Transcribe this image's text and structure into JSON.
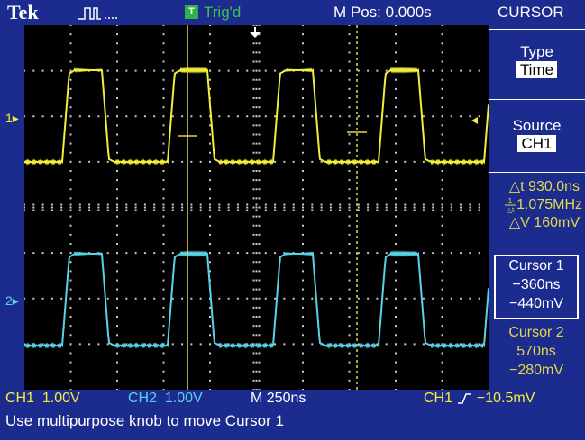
{
  "header": {
    "logo": "Tek",
    "trigger_status_icon": "T",
    "trigger_status": "Trig'd",
    "horizontal_position": "M Pos: 0.000s"
  },
  "menu": {
    "title": "CURSOR",
    "type_label": "Type",
    "type_value": "Time",
    "source_label": "Source",
    "source_value": "CH1"
  },
  "measurements": {
    "delta_t": "△t 930.0ns",
    "inv_delta_t": "1.075MHz",
    "delta_v": "△V 160mV"
  },
  "cursor1": {
    "label": "Cursor 1",
    "time": "−360ns",
    "voltage": "−440mV"
  },
  "cursor2": {
    "label": "Cursor 2",
    "time": "570ns",
    "voltage": "−280mV"
  },
  "channels": {
    "ch1_marker": "1",
    "ch2_marker": "2",
    "ch1_scale_name": "CH1",
    "ch1_scale": "1.00V",
    "ch2_scale_name": "CH2",
    "ch2_scale": "1.00V",
    "timebase": "M 250ns",
    "trigger_source": "CH1",
    "trigger_level": "−10.5mV"
  },
  "colors": {
    "background": "#1c2b8e",
    "ch1": "#f2ee3c",
    "ch2": "#58d3e6",
    "cursor": "#e3d84a",
    "grid": "#c9c9c9"
  },
  "status_message": "Use multipurpose knob to move Cursor 1"
}
